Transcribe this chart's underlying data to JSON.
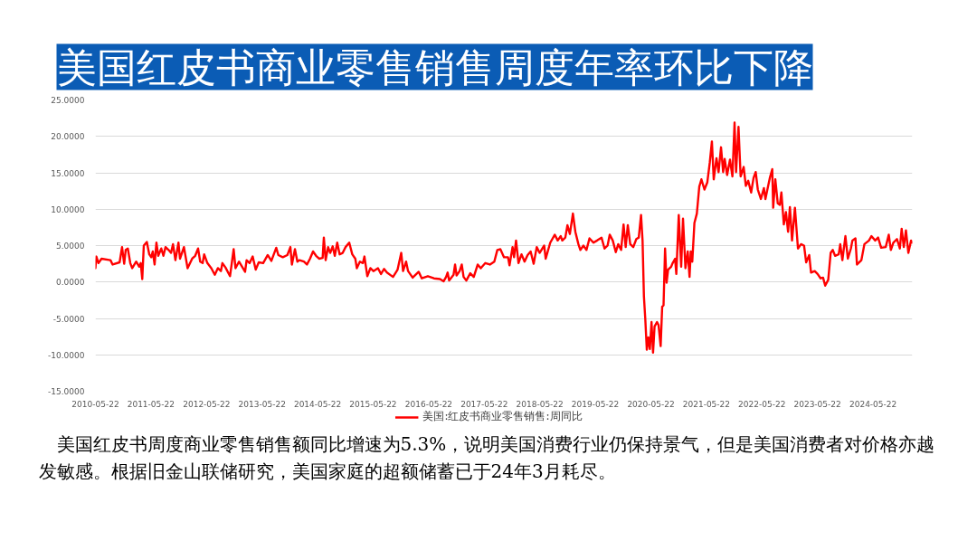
{
  "chart_data": {
    "type": "line",
    "title": "美国红皮书商业零售销售周度年率环比下降",
    "annotations": [
      "美国红皮书周度商业零售销售额同比增速为5.3%，说明美国消费行业仍保持景气，但是美国消费者对价格亦越发敏感。根据旧金山联储研究，美国家庭的超额储蓄已于24年3月耗尽。"
    ],
    "x": [
      "2010-05-22",
      "2010-05-28",
      "2010-06-11",
      "2010-07-01",
      "2010-08-29",
      "2010-09-12",
      "2010-10-28",
      "2010-11-13",
      "2010-11-27",
      "2010-12-07",
      "2010-12-21",
      "2011-01-06",
      "2011-01-19",
      "2011-02-14",
      "2011-03-06",
      "2011-03-16",
      "2011-03-26",
      "2011-04-05",
      "2011-04-25",
      "2011-05-11",
      "2011-05-24",
      "2011-06-03",
      "2011-06-15",
      "2011-06-27",
      "2011-07-09",
      "2011-07-29",
      "2011-08-12",
      "2011-08-26",
      "2011-09-15",
      "2011-10-01",
      "2011-10-14",
      "2011-10-30",
      "2011-11-19",
      "2011-11-29",
      "2011-12-25",
      "2012-01-18",
      "2012-02-17",
      "2012-03-08",
      "2012-03-27",
      "2012-04-10",
      "2012-04-26",
      "2012-05-06",
      "2012-05-27",
      "2012-06-22",
      "2012-07-15",
      "2012-08-04",
      "2012-08-24",
      "2012-09-03",
      "2012-09-23",
      "2012-10-23",
      "2012-11-16",
      "2012-11-28",
      "2012-12-21",
      "2013-01-30",
      "2013-02-09",
      "2013-03-01",
      "2013-03-21",
      "2013-04-10",
      "2013-04-30",
      "2013-05-29",
      "2013-06-28",
      "2013-07-22",
      "2013-08-23",
      "2013-09-06",
      "2013-10-05",
      "2013-11-04",
      "2013-11-24",
      "2013-12-04",
      "2013-12-24",
      "2014-01-09",
      "2014-01-23",
      "2014-02-21",
      "2014-03-13",
      "2014-04-02",
      "2014-04-22",
      "2014-05-12",
      "2014-06-01",
      "2014-06-24",
      "2014-07-02",
      "2014-07-14",
      "2014-07-30",
      "2014-08-13",
      "2014-08-29",
      "2014-09-12",
      "2014-09-28",
      "2014-10-14",
      "2014-11-03",
      "2014-11-22",
      "2014-12-16",
      "2015-01-05",
      "2015-01-25",
      "2015-02-04",
      "2015-02-24",
      "2015-03-16",
      "2015-03-26",
      "2015-04-14",
      "2015-05-04",
      "2015-05-24",
      "2015-06-23",
      "2015-07-13",
      "2015-08-02",
      "2015-08-21",
      "2015-09-30",
      "2015-10-30",
      "2015-11-23",
      "2015-12-05",
      "2015-12-25",
      "2016-01-07",
      "2016-02-06",
      "2016-03-17",
      "2016-04-06",
      "2016-05-16",
      "2016-06-25",
      "2016-08-04",
      "2016-08-28",
      "2016-09-13",
      "2016-09-23",
      "2016-10-03",
      "2016-11-01",
      "2016-11-11",
      "2016-11-21",
      "2016-12-11",
      "2016-12-25",
      "2017-01-06",
      "2017-01-24",
      "2017-02-19",
      "2017-03-14",
      "2017-04-09",
      "2017-04-29",
      "2017-05-29",
      "2017-06-28",
      "2017-07-27",
      "2017-08-16",
      "2017-09-05",
      "2017-09-29",
      "2017-10-25",
      "2017-11-04",
      "2017-11-24",
      "2017-12-04",
      "2017-12-17",
      "2018-01-02",
      "2018-01-22",
      "2018-02-11",
      "2018-03-03",
      "2018-03-23",
      "2018-04-12",
      "2018-05-02",
      "2018-05-21",
      "2018-06-20",
      "2018-06-30",
      "2018-07-30",
      "2018-08-29",
      "2018-09-17",
      "2018-10-07",
      "2018-10-17",
      "2018-11-06",
      "2018-11-20",
      "2018-12-06",
      "2018-12-26",
      "2019-01-11",
      "2019-01-31",
      "2019-02-13",
      "2019-03-05",
      "2019-03-25",
      "2019-04-14",
      "2019-05-10",
      "2019-06-03",
      "2019-07-02",
      "2019-07-22",
      "2019-08-11",
      "2019-08-25",
      "2019-09-14",
      "2019-10-04",
      "2019-10-20",
      "2019-11-08",
      "2019-11-24",
      "2019-12-08",
      "2019-12-22",
      "2020-01-07",
      "2020-01-27",
      "2020-02-16",
      "2020-03-03",
      "2020-03-18",
      "2020-03-28",
      "2020-04-06",
      "2020-04-15",
      "2020-04-25",
      "2020-05-05",
      "2020-05-15",
      "2020-05-26",
      "2020-06-05",
      "2020-06-15",
      "2020-07-01",
      "2020-07-11",
      "2020-07-25",
      "2020-08-04",
      "2020-08-13",
      "2020-08-23",
      "2020-09-02",
      "2020-09-12",
      "2020-10-02",
      "2020-10-12",
      "2020-10-28",
      "2020-11-05",
      "2020-11-21",
      "2020-12-07",
      "2020-12-19",
      "2021-01-04",
      "2021-01-19",
      "2021-01-31",
      "2021-02-08",
      "2021-02-18",
      "2021-03-04",
      "2021-03-20",
      "2021-04-05",
      "2021-04-19",
      "2021-05-09",
      "2021-05-28",
      "2021-06-13",
      "2021-06-27",
      "2021-07-09",
      "2021-07-27",
      "2021-08-10",
      "2021-08-26",
      "2021-09-09",
      "2021-09-19",
      "2021-10-05",
      "2021-10-24",
      "2021-11-09",
      "2021-11-23",
      "2021-12-03",
      "2021-12-19",
      "2022-01-02",
      "2022-01-22",
      "2022-02-05",
      "2022-02-21",
      "2022-03-12",
      "2022-03-28",
      "2022-04-11",
      "2022-04-25",
      "2022-05-15",
      "2022-06-04",
      "2022-06-14",
      "2022-06-30",
      "2022-07-13",
      "2022-07-29",
      "2022-08-04",
      "2022-08-18",
      "2022-09-03",
      "2022-09-17",
      "2022-09-27",
      "2022-10-13",
      "2022-10-27",
      "2022-11-10",
      "2022-11-22",
      "2022-12-06",
      "2022-12-25",
      "2023-01-14",
      "2023-02-03",
      "2023-02-23",
      "2023-03-09",
      "2023-03-29",
      "2023-04-10",
      "2023-05-04",
      "2023-05-23",
      "2023-06-12",
      "2023-06-28",
      "2023-07-12",
      "2023-08-01",
      "2023-08-17",
      "2023-08-31",
      "2023-09-15",
      "2023-10-09",
      "2023-10-19",
      "2023-11-02",
      "2023-11-22",
      "2023-12-08",
      "2023-12-28",
      "2024-01-07",
      "2024-01-27",
      "2024-02-06",
      "2024-03-06",
      "2024-03-26",
      "2024-04-25",
      "2024-05-11",
      "2024-06-05",
      "2024-06-24",
      "2024-07-14",
      "2024-08-13",
      "2024-09-02",
      "2024-09-16",
      "2024-10-02",
      "2024-10-26",
      "2024-11-14",
      "2024-11-26",
      "2024-12-10",
      "2024-12-24",
      "2025-01-09",
      "2025-01-27",
      "2025-02-04"
    ],
    "series": [
      {
        "name": "美国:红皮书商业零售销售:周同比",
        "color": "#ff0000",
        "values": [
          1.9,
          3.5,
          2.6,
          3.2,
          3.0,
          2.4,
          2.7,
          4.8,
          2.5,
          4.4,
          4.6,
          2.6,
          1.9,
          2.8,
          2.1,
          2.6,
          0.4,
          5.0,
          5.5,
          3.8,
          3.4,
          4.2,
          2.4,
          5.4,
          3.6,
          4.6,
          3.6,
          4.8,
          4.4,
          4.0,
          5.2,
          3.0,
          5.4,
          3.2,
          4.8,
          1.9,
          3.2,
          3.6,
          4.6,
          2.8,
          2.6,
          3.8,
          2.6,
          1.9,
          1.0,
          1.9,
          1.5,
          2.6,
          2.0,
          0.8,
          4.5,
          1.9,
          2.8,
          1.4,
          3.0,
          2.6,
          3.5,
          1.7,
          2.7,
          2.6,
          3.7,
          2.9,
          4.7,
          3.7,
          3.4,
          3.7,
          4.8,
          2.4,
          4.5,
          2.8,
          3.0,
          2.8,
          2.4,
          3.2,
          4.2,
          3.6,
          3.2,
          3.3,
          6.1,
          3.0,
          4.8,
          4.0,
          4.9,
          3.6,
          5.4,
          3.8,
          4.0,
          4.8,
          5.4,
          3.8,
          3.2,
          1.9,
          2.8,
          2.6,
          3.5,
          0.8,
          1.9,
          1.5,
          1.9,
          1.1,
          1.8,
          1.3,
          0.7,
          1.7,
          4.0,
          1.5,
          2.8,
          1.5,
          0.6,
          1.4,
          0.5,
          0.8,
          0.5,
          0.4,
          0.1,
          0.7,
          1.3,
          0.2,
          1.0,
          2.4,
          0.9,
          1.5,
          2.4,
          0.7,
          0.2,
          1.2,
          0.7,
          2.4,
          1.9,
          2.6,
          2.4,
          2.8,
          4.4,
          4.5,
          3.4,
          3.4,
          2.3,
          4.8,
          3.4,
          5.7,
          2.6,
          3.8,
          2.8,
          3.7,
          4.2,
          2.5,
          4.8,
          4.0,
          5.0,
          3.2,
          5.4,
          6.5,
          5.7,
          6.3,
          5.7,
          6.1,
          7.8,
          6.6,
          9.4,
          6.9,
          5.2,
          4.4,
          5.0,
          4.4,
          6.0,
          5.4,
          5.7,
          6.1,
          4.6,
          5.0,
          6.5,
          5.7,
          4.1,
          5.2,
          4.4,
          7.9,
          4.8,
          7.8,
          5.2,
          4.8,
          5.9,
          6.1,
          9.2,
          5.7,
          -2.0,
          -5.1,
          -9.3,
          -7.6,
          -9.2,
          -5.5,
          -9.7,
          -6.1,
          -5.5,
          -5.9,
          -8.8,
          -3.4,
          -3.2,
          4.6,
          -0.1,
          1.7,
          2.1,
          2.6,
          3.2,
          1.1,
          9.2,
          2.1,
          8.7,
          1.9,
          4.2,
          0.7,
          4.2,
          2.8,
          8.1,
          9.4,
          13.1,
          14.1,
          12.7,
          13.7,
          16.4,
          19.3,
          14.1,
          17.0,
          15.1,
          18.5,
          15.1,
          16.9,
          14.7,
          16.8,
          14.5,
          21.9,
          15.1,
          21.3,
          14.5,
          15.8,
          13.2,
          13.9,
          12.3,
          14.3,
          15.1,
          12.7,
          11.4,
          12.9,
          11.4,
          13.0,
          14.3,
          15.5,
          10.2,
          14.1,
          10.8,
          10.6,
          12.3,
          7.9,
          9.6,
          6.9,
          10.3,
          5.7,
          10.2,
          4.6,
          5.2,
          5.0,
          2.7,
          3.7,
          1.3,
          1.5,
          1.1,
          0.5,
          0.6,
          -0.5,
          0.3,
          4.0,
          4.4,
          3.6,
          3.8,
          5.2,
          3.0,
          6.3,
          3.2,
          4.6,
          5.7,
          6.0,
          2.4,
          3.0,
          5.2,
          5.7,
          6.3,
          5.7,
          6.1,
          4.7,
          4.8,
          6.5,
          4.4,
          5.4,
          5.9,
          4.6,
          7.3,
          4.8,
          7.1,
          4.0,
          5.7,
          5.4
        ]
      }
    ],
    "xlim": [
      "2010-05-22",
      "2025-02-04"
    ],
    "xticks": [
      "2010-05-22",
      "2011-05-22",
      "2012-05-22",
      "2013-05-22",
      "2014-05-22",
      "2015-05-22",
      "2016-05-22",
      "2017-05-22",
      "2018-05-22",
      "2019-05-22",
      "2020-05-22",
      "2021-05-22",
      "2022-05-22",
      "2023-05-22",
      "2024-05-22"
    ],
    "ylim": [
      -15,
      25
    ],
    "yticks": [
      {
        "value": -15,
        "label": "-15.0000"
      },
      {
        "value": -10,
        "label": "-10.0000"
      },
      {
        "value": -5,
        "label": "-5.0000"
      },
      {
        "value": 0,
        "label": "0.0000"
      },
      {
        "value": 5,
        "label": "5.0000"
      },
      {
        "value": 10,
        "label": "10.0000"
      },
      {
        "value": 15,
        "label": "15.0000"
      },
      {
        "value": 20,
        "label": "20.0000"
      },
      {
        "value": 25,
        "label": "25.0000"
      }
    ],
    "grid": "y",
    "legend": "bottom"
  }
}
